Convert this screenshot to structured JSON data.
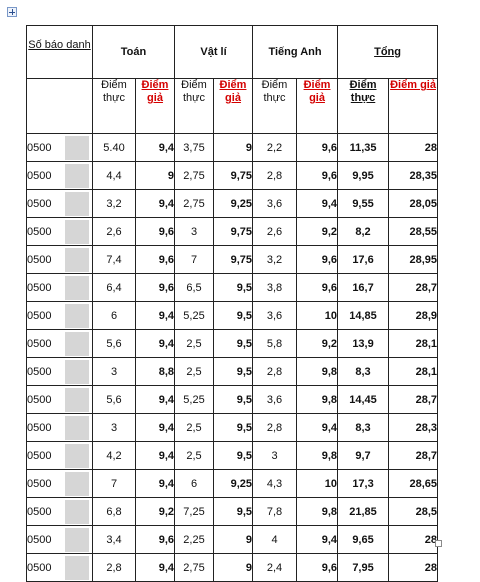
{
  "header": {
    "so_bao_danh": "Số báo danh",
    "subjects": [
      "Toán",
      "Vật lí",
      "Tiếng Anh"
    ],
    "tong": "Tổng",
    "diem_thuc": "Điểm thực",
    "diem_gia": "Điểm giả"
  },
  "rows": [
    {
      "id": "0500",
      "toan_thuc": "5.40",
      "toan_gia": "9,4",
      "li_thuc": "3,75",
      "li_gia": "9",
      "anh_thuc": "2,2",
      "anh_gia": "9,6",
      "tong_thuc": "11,35",
      "tong_gia": "28"
    },
    {
      "id": "0500",
      "toan_thuc": "4,4",
      "toan_gia": "9",
      "li_thuc": "2,75",
      "li_gia": "9,75",
      "anh_thuc": "2,8",
      "anh_gia": "9,6",
      "tong_thuc": "9,95",
      "tong_gia": "28,35"
    },
    {
      "id": "0500",
      "toan_thuc": "3,2",
      "toan_gia": "9,4",
      "li_thuc": "2,75",
      "li_gia": "9,25",
      "anh_thuc": "3,6",
      "anh_gia": "9,4",
      "tong_thuc": "9,55",
      "tong_gia": "28,05"
    },
    {
      "id": "0500",
      "toan_thuc": "2,6",
      "toan_gia": "9,6",
      "li_thuc": "3",
      "li_gia": "9,75",
      "anh_thuc": "2,6",
      "anh_gia": "9,2",
      "tong_thuc": "8,2",
      "tong_gia": "28,55"
    },
    {
      "id": "0500",
      "toan_thuc": "7,4",
      "toan_gia": "9,6",
      "li_thuc": "7",
      "li_gia": "9,75",
      "anh_thuc": "3,2",
      "anh_gia": "9,6",
      "tong_thuc": "17,6",
      "tong_gia": "28,95"
    },
    {
      "id": "0500",
      "toan_thuc": "6,4",
      "toan_gia": "9,6",
      "li_thuc": "6,5",
      "li_gia": "9,5",
      "anh_thuc": "3,8",
      "anh_gia": "9,6",
      "tong_thuc": "16,7",
      "tong_gia": "28,7"
    },
    {
      "id": "0500",
      "toan_thuc": "6",
      "toan_gia": "9,4",
      "li_thuc": "5,25",
      "li_gia": "9,5",
      "anh_thuc": "3,6",
      "anh_gia": "10",
      "tong_thuc": "14,85",
      "tong_gia": "28,9"
    },
    {
      "id": "0500",
      "toan_thuc": "5,6",
      "toan_gia": "9,4",
      "li_thuc": "2,5",
      "li_gia": "9,5",
      "anh_thuc": "5,8",
      "anh_gia": "9,2",
      "tong_thuc": "13,9",
      "tong_gia": "28,1"
    },
    {
      "id": "0500",
      "toan_thuc": "3",
      "toan_gia": "8,8",
      "li_thuc": "2,5",
      "li_gia": "9,5",
      "anh_thuc": "2,8",
      "anh_gia": "9,8",
      "tong_thuc": "8,3",
      "tong_gia": "28,1"
    },
    {
      "id": "0500",
      "toan_thuc": "5,6",
      "toan_gia": "9,4",
      "li_thuc": "5,25",
      "li_gia": "9,5",
      "anh_thuc": "3,6",
      "anh_gia": "9,8",
      "tong_thuc": "14,45",
      "tong_gia": "28,7"
    },
    {
      "id": "0500",
      "toan_thuc": "3",
      "toan_gia": "9,4",
      "li_thuc": "2,5",
      "li_gia": "9,5",
      "anh_thuc": "2,8",
      "anh_gia": "9,4",
      "tong_thuc": "8,3",
      "tong_gia": "28,3"
    },
    {
      "id": "0500",
      "toan_thuc": "4,2",
      "toan_gia": "9,4",
      "li_thuc": "2,5",
      "li_gia": "9,5",
      "anh_thuc": "3",
      "anh_gia": "9,8",
      "tong_thuc": "9,7",
      "tong_gia": "28,7"
    },
    {
      "id": "0500",
      "toan_thuc": "7",
      "toan_gia": "9,4",
      "li_thuc": "6",
      "li_gia": "9,25",
      "anh_thuc": "4,3",
      "anh_gia": "10",
      "tong_thuc": "17,3",
      "tong_gia": "28,65"
    },
    {
      "id": "0500",
      "toan_thuc": "6,8",
      "toan_gia": "9,2",
      "li_thuc": "7,25",
      "li_gia": "9,5",
      "anh_thuc": "7,8",
      "anh_gia": "9,8",
      "tong_thuc": "21,85",
      "tong_gia": "28,5"
    },
    {
      "id": "0500",
      "toan_thuc": "3,4",
      "toan_gia": "9,6",
      "li_thuc": "2,25",
      "li_gia": "9",
      "anh_thuc": "4",
      "anh_gia": "9,4",
      "tong_thuc": "9,65",
      "tong_gia": "28"
    },
    {
      "id": "0500",
      "toan_thuc": "2,8",
      "toan_gia": "9,4",
      "li_thuc": "2,75",
      "li_gia": "9",
      "anh_thuc": "2,4",
      "anh_gia": "9,6",
      "tong_thuc": "7,95",
      "tong_gia": "28"
    }
  ]
}
